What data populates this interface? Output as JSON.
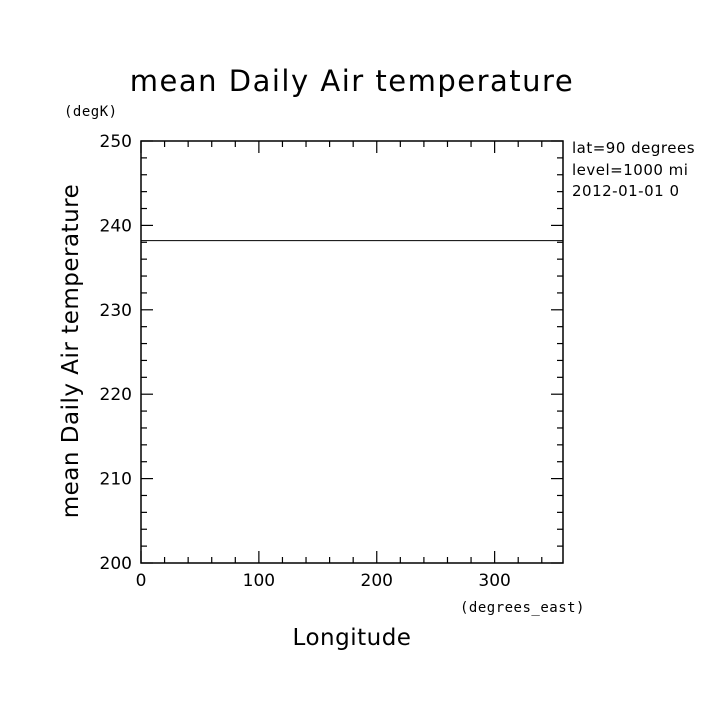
{
  "chart_data": {
    "type": "line",
    "title": "mean Daily Air temperature",
    "xlabel": "Longitude",
    "ylabel": "mean Daily Air temperature",
    "x_units": "(degrees_east)",
    "y_units": "(degK)",
    "xlim": [
      0,
      358
    ],
    "ylim": [
      200,
      250
    ],
    "x_major_ticks": [
      0,
      100,
      200,
      300
    ],
    "x_tick_labels": [
      "0",
      "100",
      "200",
      "300"
    ],
    "x_minor_step": 20,
    "y_major_ticks": [
      200,
      210,
      220,
      230,
      240,
      250
    ],
    "y_tick_labels": [
      "200",
      "210",
      "220",
      "230",
      "240",
      "250"
    ],
    "y_minor_step": 2,
    "grid": false,
    "series": [
      {
        "x": [
          0,
          358
        ],
        "y": [
          238.2,
          238.2
        ]
      }
    ],
    "annotations": [
      "lat=90 degrees",
      "level=1000 mi",
      "2012-01-01 0"
    ]
  }
}
